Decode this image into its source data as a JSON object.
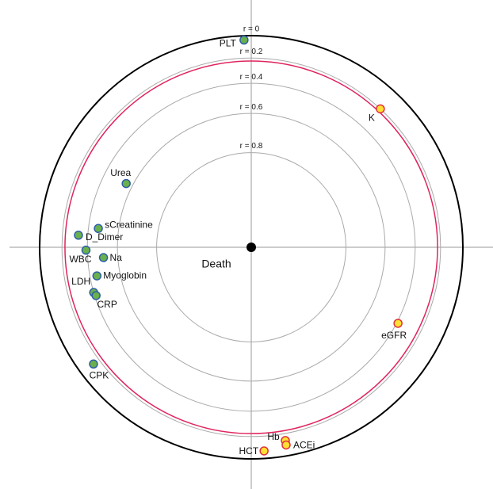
{
  "chart_data": {
    "type": "correlation-globe",
    "center_label": "Death",
    "rlim": [
      0,
      1
    ],
    "rticks": [
      {
        "value": 0,
        "label": "r = 0"
      },
      {
        "value": 0.2,
        "label": "r = 0.2"
      },
      {
        "value": 0.4,
        "label": "r = 0.4"
      },
      {
        "value": 0.6,
        "label": "r = 0.6"
      },
      {
        "value": 0.8,
        "label": "r = 0.8"
      }
    ],
    "threshold_r": 0.225,
    "threshold_color": "#e0245e",
    "points": [
      {
        "label": "PLT",
        "theta": 358,
        "r": 0.04,
        "color": "#6ab04c",
        "edge": "#2d5fa8"
      },
      {
        "label": "K",
        "theta": 43,
        "r": 0.2,
        "color": "#ffe033",
        "edge": "#e0303a"
      },
      {
        "label": "Urea",
        "theta": 297,
        "r": 0.56,
        "color": "#6ab04c",
        "edge": "#2d5fa8"
      },
      {
        "label": "sCreatinine",
        "theta": 277,
        "r": 0.47,
        "color": "#6ab04c",
        "edge": "#2d5fa8"
      },
      {
        "label": "D_Dimer",
        "theta": 274,
        "r": 0.33,
        "color": "#6ab04c",
        "edge": "#2d5fa8"
      },
      {
        "label": "WBC",
        "theta": 269,
        "r": 0.39,
        "color": "#6ab04c",
        "edge": "#2d5fa8"
      },
      {
        "label": "Na",
        "theta": 266,
        "r": 0.51,
        "color": "#6ab04c",
        "edge": "#2d5fa8"
      },
      {
        "label": "Myoglobin",
        "theta": 259.5,
        "r": 0.45,
        "color": "#6ab04c",
        "edge": "#2d5fa8"
      },
      {
        "label": "LDH",
        "theta": 254,
        "r": 0.4,
        "color": "#6ab04c",
        "edge": "#2d5fa8"
      },
      {
        "label": "CRP",
        "theta": 252.7,
        "r": 0.41,
        "color": "#6ab04c",
        "edge": "#2d5fa8"
      },
      {
        "label": "CPK",
        "theta": 233.5,
        "r": 0.14,
        "color": "#6ab04c",
        "edge": "#2d5fa8"
      },
      {
        "label": "eGFR",
        "theta": 117.4,
        "r": 0.39,
        "color": "#ffe033",
        "edge": "#e0303a"
      },
      {
        "label": "Hb",
        "theta": 170,
        "r": 0.14,
        "color": "#ffe033",
        "edge": "#e0303a"
      },
      {
        "label": "ACEi",
        "theta": 170,
        "r": 0.1,
        "color": "#ffe033",
        "edge": "#e0303a"
      },
      {
        "label": "HCT",
        "theta": 176.4,
        "r": 0.07,
        "color": "#ffe033",
        "edge": "#e0303a"
      }
    ]
  }
}
